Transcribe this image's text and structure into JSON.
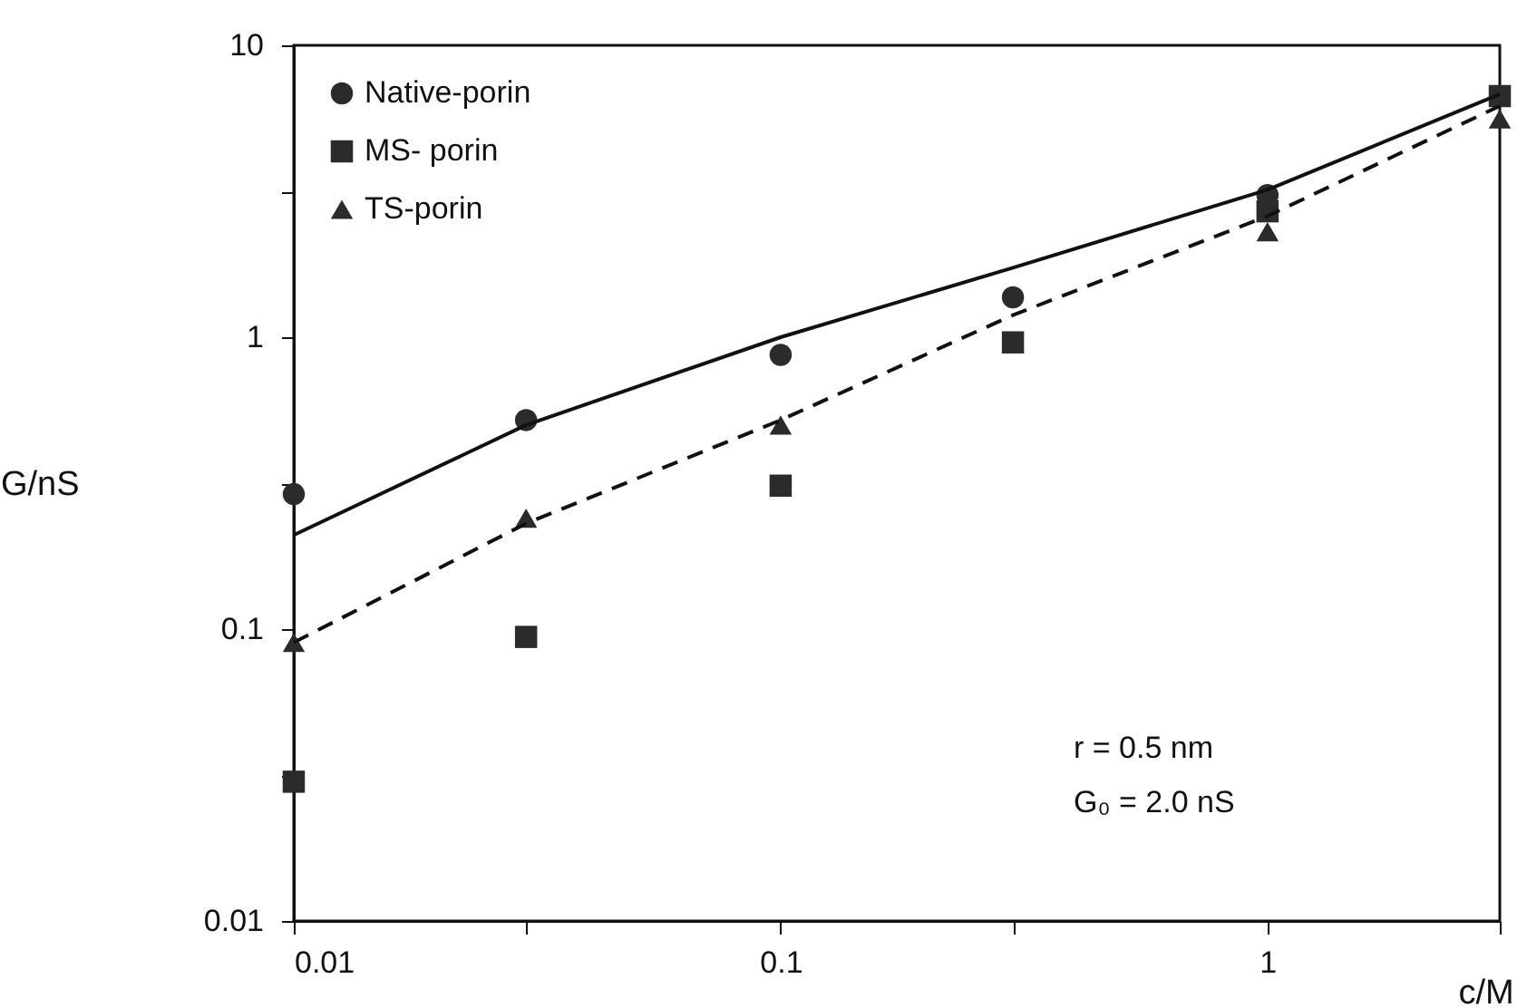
{
  "chart_data": {
    "type": "scatter",
    "xlabel": "c/M",
    "ylabel": "G/nS",
    "log": "xy",
    "grid": false,
    "legend": "top left",
    "xlim": [
      0.01,
      3
    ],
    "xticks": [
      0.01,
      {
        "value": 0.03,
        "label": null
      },
      0.1,
      {
        "value": 0.3,
        "label": null
      },
      1,
      {
        "value": 3,
        "label": null
      }
    ],
    "ylim": [
      0.01,
      10
    ],
    "yticks": [
      0.01,
      {
        "value": 0.0316,
        "label": null
      },
      0.1,
      {
        "value": 0.316,
        "label": null
      },
      1,
      {
        "value": 3.16,
        "label": null
      },
      10
    ],
    "annotations": [
      "r = 0.5 nm",
      "G₀ = 2.0 nS"
    ],
    "series": [
      {
        "name": "Native-porin",
        "marker": "circle",
        "color": "#2b2b2b",
        "x": [
          0.01,
          0.03,
          0.1,
          0.3,
          1
        ],
        "values": [
          0.29,
          0.52,
          0.87,
          1.37,
          3.07
        ]
      },
      {
        "name": "MS- porin",
        "marker": "square",
        "color": "#2b2b2b",
        "x": [
          0.01,
          0.03,
          0.1,
          0.3,
          1,
          3
        ],
        "values": [
          0.03,
          0.094,
          0.31,
          0.96,
          2.7,
          6.7
        ]
      },
      {
        "name": "TS-porin",
        "marker": "triangle",
        "color": "#2b2b2b",
        "x": [
          0.01,
          0.03,
          0.1,
          1,
          3
        ],
        "values": [
          0.09,
          0.24,
          0.5,
          2.3,
          5.6
        ]
      },
      {
        "type": "line",
        "marker": "none",
        "line_style": "solid",
        "color": "#111111",
        "x": [
          0.01,
          0.03,
          0.1,
          0.3,
          1,
          3
        ],
        "values": [
          0.21,
          0.5,
          1.0,
          1.73,
          3.2,
          6.8
        ]
      },
      {
        "type": "line",
        "marker": "none",
        "line_style": "dashed",
        "color": "#111111",
        "x": [
          0.01,
          0.03,
          0.1,
          0.3,
          1,
          3
        ],
        "values": [
          0.09,
          0.23,
          0.52,
          1.19,
          2.6,
          6.2
        ]
      }
    ]
  }
}
